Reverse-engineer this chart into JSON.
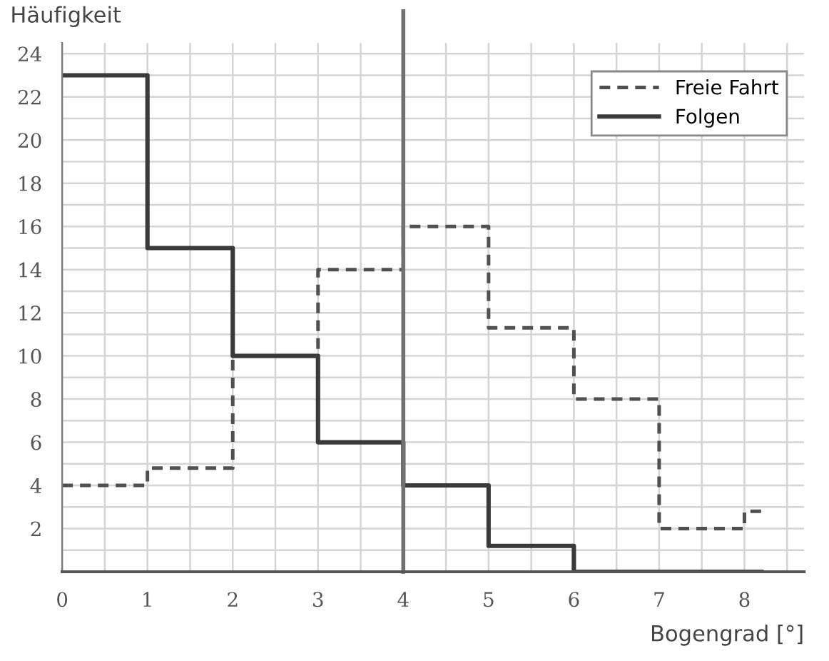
{
  "chart_data": {
    "type": "step",
    "xlabel": "Bogengrad [°]",
    "ylabel": "Häufigkeit",
    "xlim": [
      0,
      8.7
    ],
    "ylim": [
      0,
      24.5
    ],
    "xticks": [
      0,
      1,
      2,
      3,
      4,
      5,
      6,
      7,
      8
    ],
    "yticks": [
      2,
      4,
      6,
      8,
      10,
      12,
      14,
      16,
      18,
      20,
      22,
      24
    ],
    "grid": true,
    "legend": "top right",
    "series": [
      {
        "name": "Freie Fahrt",
        "color": "#505050",
        "line_style": "dashed",
        "x": [
          0,
          1,
          2,
          3,
          4,
          5,
          6,
          7,
          8,
          8.2
        ],
        "values": [
          4,
          4.8,
          10,
          14,
          16,
          11.3,
          8,
          2,
          2.8,
          2.8
        ]
      },
      {
        "name": "Folgen",
        "color": "#3a3a3a",
        "line_style": "solid",
        "x": [
          0,
          1,
          2,
          3,
          4,
          5,
          6,
          8.2
        ],
        "values": [
          23,
          15,
          10,
          6,
          4,
          1.2,
          0,
          0
        ]
      }
    ],
    "ref_lines": [
      {
        "axis": "x",
        "value": 4,
        "color": "#707070"
      }
    ]
  }
}
